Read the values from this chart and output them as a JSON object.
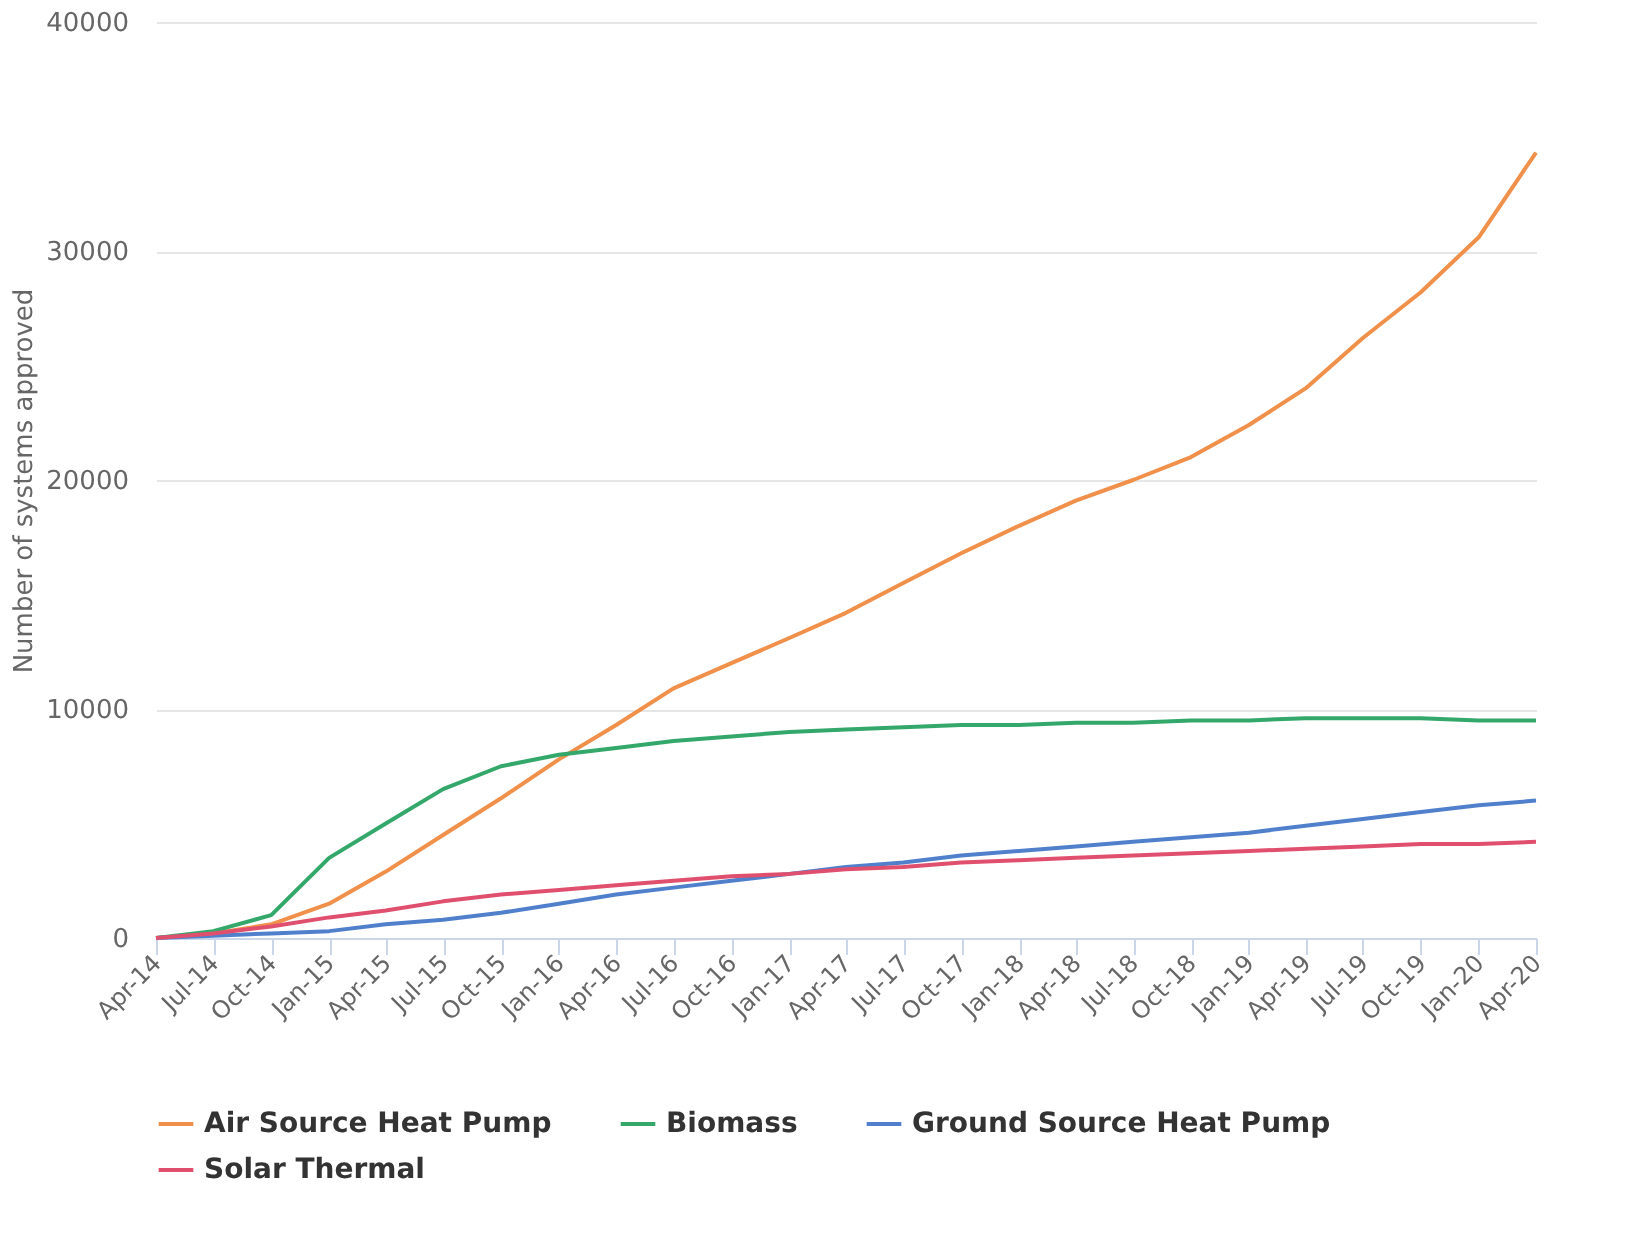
{
  "chart_data": {
    "type": "line",
    "ylabel": "Number of systems approved",
    "x": [
      "2014-04",
      "2014-07",
      "2014-10",
      "2015-01",
      "2015-04",
      "2015-07",
      "2015-10",
      "2016-01",
      "2016-04",
      "2016-07",
      "2016-10",
      "2017-01",
      "2017-04",
      "2017-07",
      "2017-10",
      "2018-01",
      "2018-04",
      "2018-07",
      "2018-10",
      "2019-01",
      "2019-04",
      "2019-07",
      "2019-10",
      "2020-01",
      "2020-04"
    ],
    "series": [
      {
        "name": "Air Source Heat Pump",
        "color": "#f0904a",
        "values": [
          0,
          200,
          600,
          1500,
          2900,
          4500,
          6100,
          7800,
          9300,
          10900,
          12000,
          13100,
          14200,
          15500,
          16800,
          18000,
          19100,
          20000,
          21000,
          22400,
          24000,
          26200,
          28200,
          30600,
          34300
        ]
      },
      {
        "name": "Biomass",
        "color": "#34a86a",
        "values": [
          0,
          300,
          1000,
          3500,
          5000,
          6500,
          7500,
          8000,
          8300,
          8600,
          8800,
          9000,
          9100,
          9200,
          9300,
          9300,
          9400,
          9400,
          9500,
          9500,
          9600,
          9600,
          9600,
          9500,
          9500
        ]
      },
      {
        "name": "Ground Source Heat Pump",
        "color": "#5080cc",
        "values": [
          0,
          100,
          200,
          300,
          600,
          800,
          1100,
          1500,
          1900,
          2200,
          2500,
          2800,
          3100,
          3300,
          3600,
          3800,
          4000,
          4200,
          4400,
          4600,
          4900,
          5200,
          5500,
          5800,
          6000
        ]
      },
      {
        "name": "Solar Thermal",
        "color": "#e0506e",
        "values": [
          0,
          200,
          500,
          900,
          1200,
          1600,
          1900,
          2100,
          2300,
          2500,
          2700,
          2800,
          3000,
          3100,
          3300,
          3400,
          3500,
          3600,
          3700,
          3800,
          3900,
          4000,
          4100,
          4100,
          4200
        ]
      }
    ],
    "xlim": [
      "2014-04",
      "2020-04"
    ],
    "xticks": [
      {
        "value": "2014-04",
        "label": "Apr-14"
      },
      {
        "value": "2014-07",
        "label": "Jul-14"
      },
      {
        "value": "2014-10",
        "label": "Oct-14"
      },
      {
        "value": "2015-01",
        "label": "Jan-15"
      },
      {
        "value": "2015-04",
        "label": "Apr-15"
      },
      {
        "value": "2015-07",
        "label": "Jul-15"
      },
      {
        "value": "2015-10",
        "label": "Oct-15"
      },
      {
        "value": "2016-01",
        "label": "Jan-16"
      },
      {
        "value": "2016-04",
        "label": "Apr-16"
      },
      {
        "value": "2016-07",
        "label": "Jul-16"
      },
      {
        "value": "2016-10",
        "label": "Oct-16"
      },
      {
        "value": "2017-01",
        "label": "Jan-17"
      },
      {
        "value": "2017-04",
        "label": "Apr-17"
      },
      {
        "value": "2017-07",
        "label": "Jul-17"
      },
      {
        "value": "2017-10",
        "label": "Oct-17"
      },
      {
        "value": "2018-01",
        "label": "Jan-18"
      },
      {
        "value": "2018-04",
        "label": "Apr-18"
      },
      {
        "value": "2018-07",
        "label": "Jul-18"
      },
      {
        "value": "2018-10",
        "label": "Oct-18"
      },
      {
        "value": "2019-01",
        "label": "Jan-19"
      },
      {
        "value": "2019-04",
        "label": "Apr-19"
      },
      {
        "value": "2019-07",
        "label": "Jul-19"
      },
      {
        "value": "2019-10",
        "label": "Oct-19"
      },
      {
        "value": "2020-01",
        "label": "Jan-20"
      },
      {
        "value": "2020-04",
        "label": "Apr-20"
      }
    ],
    "ylim": [
      0,
      40000
    ],
    "yticks": [
      0,
      10000,
      20000,
      30000,
      40000
    ],
    "grid": "y",
    "legend": "bottom",
    "marker": "none",
    "line_style": "solid"
  }
}
